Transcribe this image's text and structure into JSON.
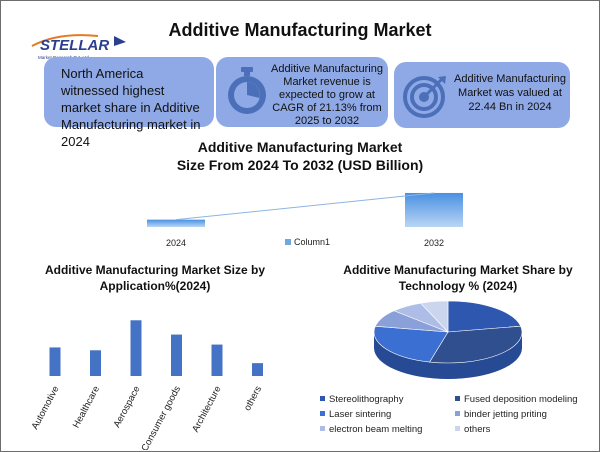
{
  "logo": {
    "brand": "STELLAR",
    "tagline": "Market Research Pvt. Ltd."
  },
  "page": {
    "title": "Additive Manufacturing Market"
  },
  "boxes": {
    "box1": {
      "text": "North America witnessed highest market share in Additive Manufacturing market in 2024"
    },
    "box2": {
      "text": "Additive Manufacturing Market revenue is expected to grow at CAGR of 21.13% from 2025 to 2032",
      "icon": "stopwatch-icon"
    },
    "box3": {
      "text": "Additive Manufacturing Market was valued at 22.44 Bn in 2024",
      "icon": "target-icon"
    }
  },
  "colors": {
    "box": "#8ea9e6",
    "bar": "#4472c4",
    "bar_light": "#5b9bd5"
  },
  "chart_data": [
    {
      "type": "bar",
      "title_line1": "Additive Manufacturing Market",
      "title_line2": "Size From 2024 To 2032 (USD Billion)",
      "categories": [
        "2024",
        "2032"
      ],
      "series": [
        {
          "name": "Column1",
          "values": [
            22.44,
            104.0
          ]
        }
      ],
      "trendline": true,
      "ylim": [
        0,
        110
      ]
    },
    {
      "type": "bar",
      "title_line1": "Additive Manufacturing Market Size by",
      "title_line2": "Application%(2024)",
      "categories": [
        "Automotive",
        "Healthcare",
        "Aerospace",
        "Consumer goods",
        "Architecture",
        "others"
      ],
      "values": [
        20,
        18,
        39,
        29,
        22,
        9
      ],
      "ylim": [
        0,
        42
      ]
    },
    {
      "type": "pie",
      "title_line1": "Additive Manufacturing Market Share  by",
      "title_line2": "Technology %  (2024)",
      "labels": [
        "Stereolithography",
        "Fused deposition modeling",
        "Laser sintering",
        "binder jetting priting",
        "electron beam melting",
        "others"
      ],
      "values": [
        22,
        32,
        24,
        9,
        7,
        6
      ],
      "colors": [
        "#2e57b0",
        "#2f4f8f",
        "#3b6fd1",
        "#8aa0d8",
        "#aebde6",
        "#cbd5ee"
      ]
    }
  ]
}
